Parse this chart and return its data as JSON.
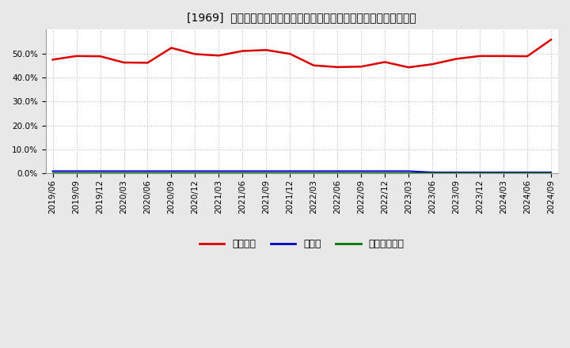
{
  "title": "[1969]  自己資本、のれん、繰延税金資産の総資産に対する比率の推移",
  "x_labels": [
    "2019/06",
    "2019/09",
    "2019/12",
    "2020/03",
    "2020/06",
    "2020/09",
    "2020/12",
    "2021/03",
    "2021/06",
    "2021/09",
    "2021/12",
    "2022/03",
    "2022/06",
    "2022/09",
    "2022/12",
    "2023/03",
    "2023/06",
    "2023/09",
    "2023/12",
    "2024/03",
    "2024/06",
    "2024/09"
  ],
  "jiko_shihon": [
    0.474,
    0.489,
    0.488,
    0.462,
    0.461,
    0.523,
    0.497,
    0.491,
    0.51,
    0.514,
    0.498,
    0.45,
    0.443,
    0.445,
    0.464,
    0.442,
    0.455,
    0.477,
    0.489,
    0.489,
    0.488,
    0.557
  ],
  "noren": [
    0.01,
    0.01,
    0.01,
    0.01,
    0.01,
    0.01,
    0.01,
    0.01,
    0.01,
    0.01,
    0.01,
    0.01,
    0.01,
    0.01,
    0.01,
    0.01,
    0.005,
    0.005,
    0.005,
    0.005,
    0.005,
    0.005
  ],
  "kurinobe": [
    0.003,
    0.003,
    0.003,
    0.003,
    0.003,
    0.003,
    0.003,
    0.003,
    0.003,
    0.003,
    0.003,
    0.003,
    0.003,
    0.003,
    0.003,
    0.003,
    0.003,
    0.003,
    0.003,
    0.003,
    0.003,
    0.003
  ],
  "line_color_jiko": "#dd0000",
  "line_color_noren": "#0000cc",
  "line_color_kurinobe": "#007700",
  "legend_labels": [
    "自己資本",
    "のれん",
    "繰延税金資産"
  ],
  "ylim": [
    0.0,
    0.6
  ],
  "yticks": [
    0.0,
    0.1,
    0.2,
    0.3,
    0.4,
    0.5
  ],
  "fig_bg_color": "#e8e8e8",
  "plot_bg_color": "#ffffff",
  "grid_color": "#bbbbbb",
  "title_fontsize": 10,
  "tick_fontsize": 7.5,
  "legend_fontsize": 9
}
